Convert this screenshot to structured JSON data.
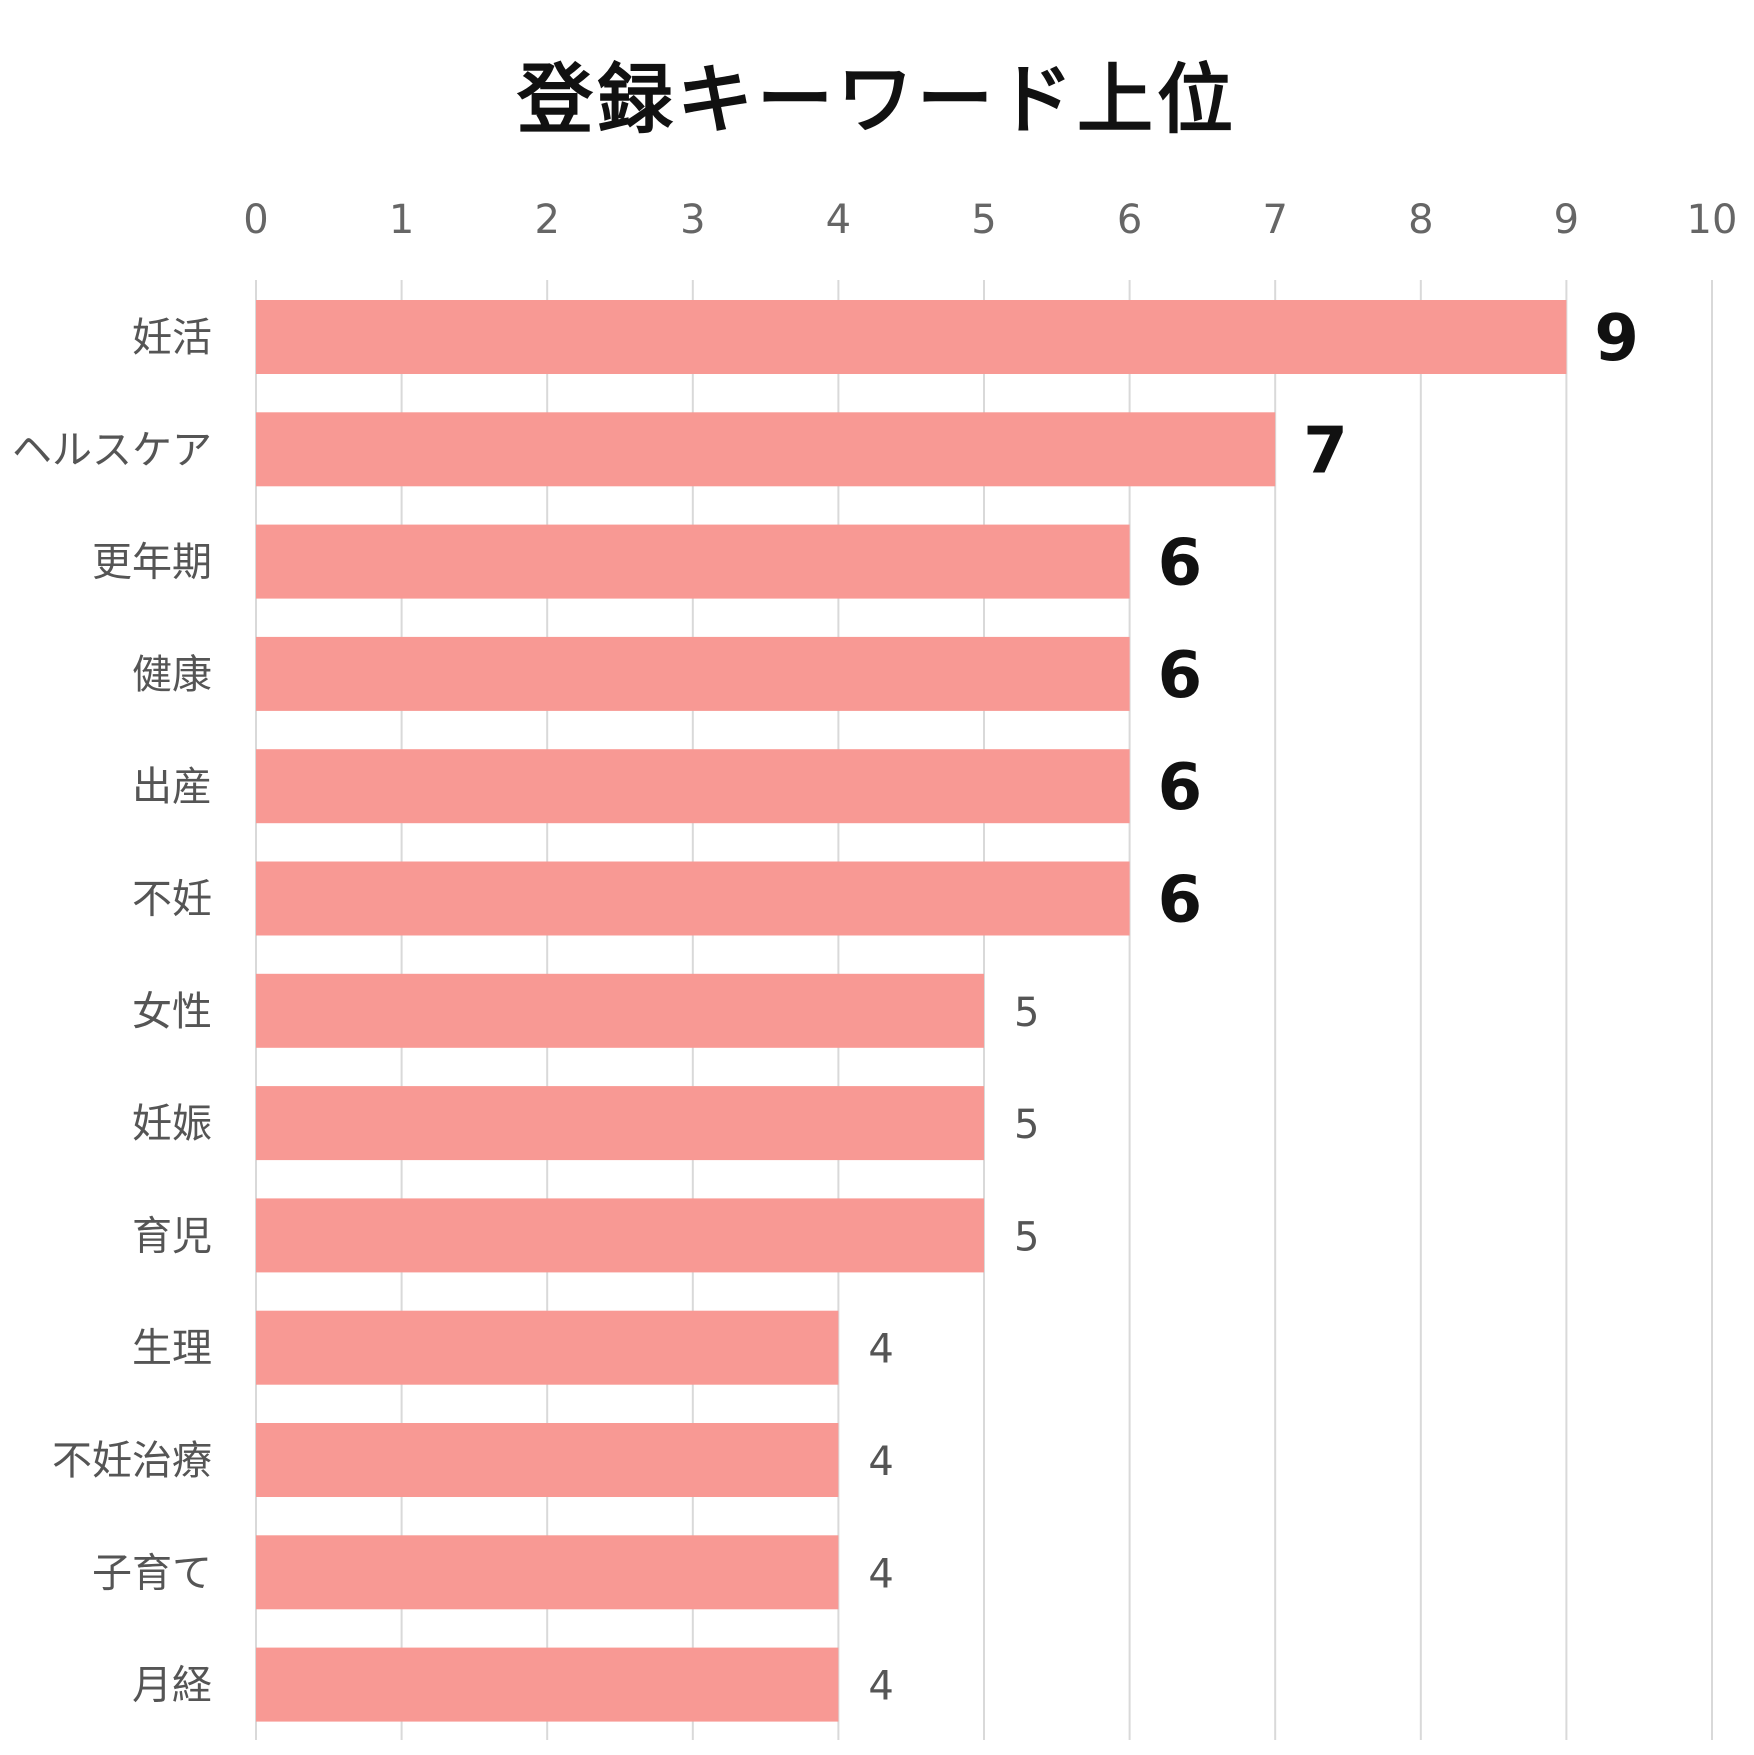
{
  "chart_data": {
    "type": "bar",
    "orientation": "horizontal",
    "title": "登録キーワード上位",
    "categories": [
      "妊活",
      "ヘルスケア",
      "更年期",
      "健康",
      "出産",
      "不妊",
      "女性",
      "妊娠",
      "育児",
      "生理",
      "不妊治療",
      "子育て",
      "月経"
    ],
    "values": [
      9,
      7,
      6,
      6,
      6,
      6,
      5,
      5,
      5,
      4,
      4,
      4,
      4
    ],
    "xlim": [
      0,
      10
    ],
    "xticks": [
      "0",
      "1",
      "2",
      "3",
      "4",
      "5",
      "6",
      "7",
      "8",
      "9",
      "10"
    ],
    "xaxis_position": "top",
    "grid": true,
    "bar_color": "#f89994",
    "grid_color": "#d9d9d9",
    "emphasis_threshold": 6,
    "xlabel": "",
    "ylabel": ""
  }
}
